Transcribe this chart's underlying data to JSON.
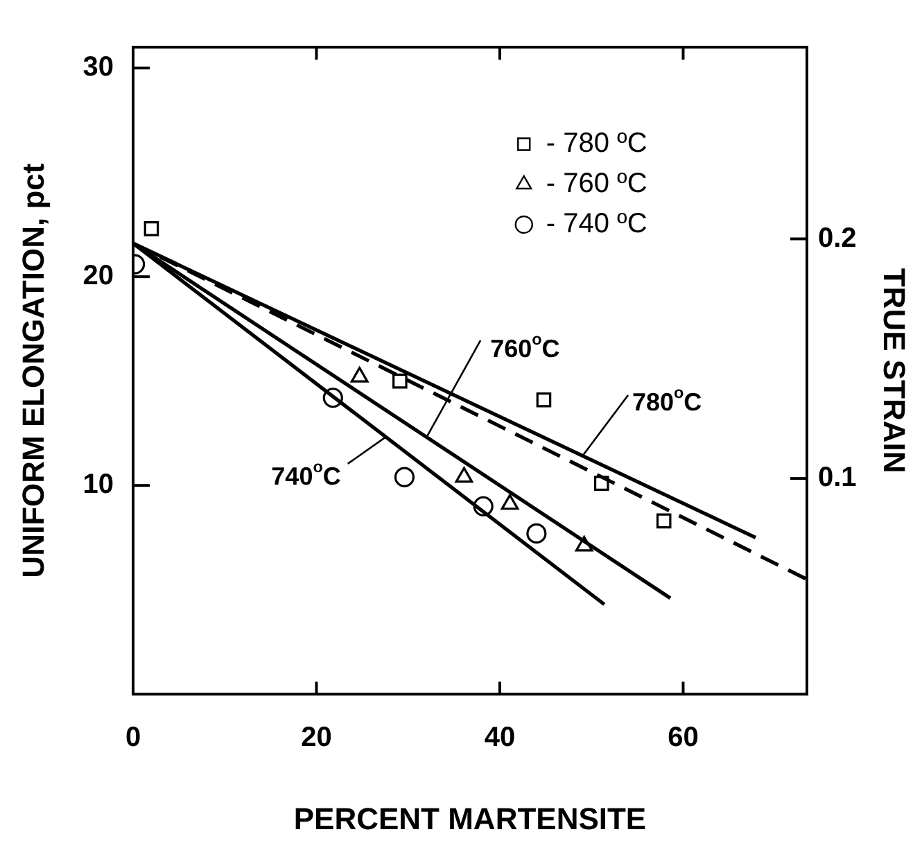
{
  "chart_data": {
    "type": "scatter",
    "xlabel": "PERCENT MARTENSITE",
    "ylabel": "UNIFORM ELONGATION, pct",
    "y2label": "TRUE STRAIN",
    "xlim": [
      0,
      73.5
    ],
    "xticks": [
      0,
      20,
      40,
      60
    ],
    "ylim": [
      0,
      31
    ],
    "yticks": [
      10,
      20,
      30
    ],
    "y2lim": [
      0.01,
      0.28
    ],
    "y2ticks": [
      0.1,
      0.2
    ],
    "grid": false,
    "legend": "top right",
    "series": [
      {
        "name": "- 780 ºC",
        "marker": "square",
        "color": "#000000",
        "x": [
          2.0,
          29.1,
          44.8,
          51.1,
          57.9
        ],
        "values": [
          22.3,
          15.0,
          14.1,
          10.1,
          8.3
        ]
      },
      {
        "name": "- 760 ºC",
        "marker": "triangle",
        "color": "#000000",
        "x": [
          24.7,
          36.1,
          41.1,
          49.2
        ],
        "values": [
          15.2,
          10.4,
          9.1,
          7.1
        ]
      },
      {
        "name": "- 740 ºC",
        "marker": "circle",
        "color": "#000000",
        "x": [
          0.2,
          21.8,
          29.6,
          38.2,
          44.0
        ],
        "values": [
          20.6,
          14.2,
          10.4,
          9.0,
          7.7
        ]
      },
      {
        "type": "line",
        "line_style": "solid",
        "color": "#000000",
        "x": [
          0,
          67.9
        ],
        "values": [
          21.6,
          7.5
        ]
      },
      {
        "type": "line",
        "line_style": "dashed",
        "color": "#000000",
        "x": [
          0,
          73.5
        ],
        "values": [
          21.6,
          5.5
        ]
      },
      {
        "type": "line",
        "line_style": "solid",
        "color": "#000000",
        "x": [
          0,
          58.6
        ],
        "values": [
          21.6,
          4.6
        ]
      },
      {
        "type": "line",
        "line_style": "solid",
        "color": "#000000",
        "x": [
          0,
          51.4
        ],
        "values": [
          21.6,
          4.3
        ]
      }
    ],
    "annotations": [
      {
        "text": "760$^{o}$C",
        "x": 32,
        "y": 12.3
      },
      {
        "text": "780$^{o}$C",
        "x": 49,
        "y": 11.4
      },
      {
        "text": "740$^{o}$C",
        "x": 27.5,
        "y": 12.3
      }
    ]
  }
}
